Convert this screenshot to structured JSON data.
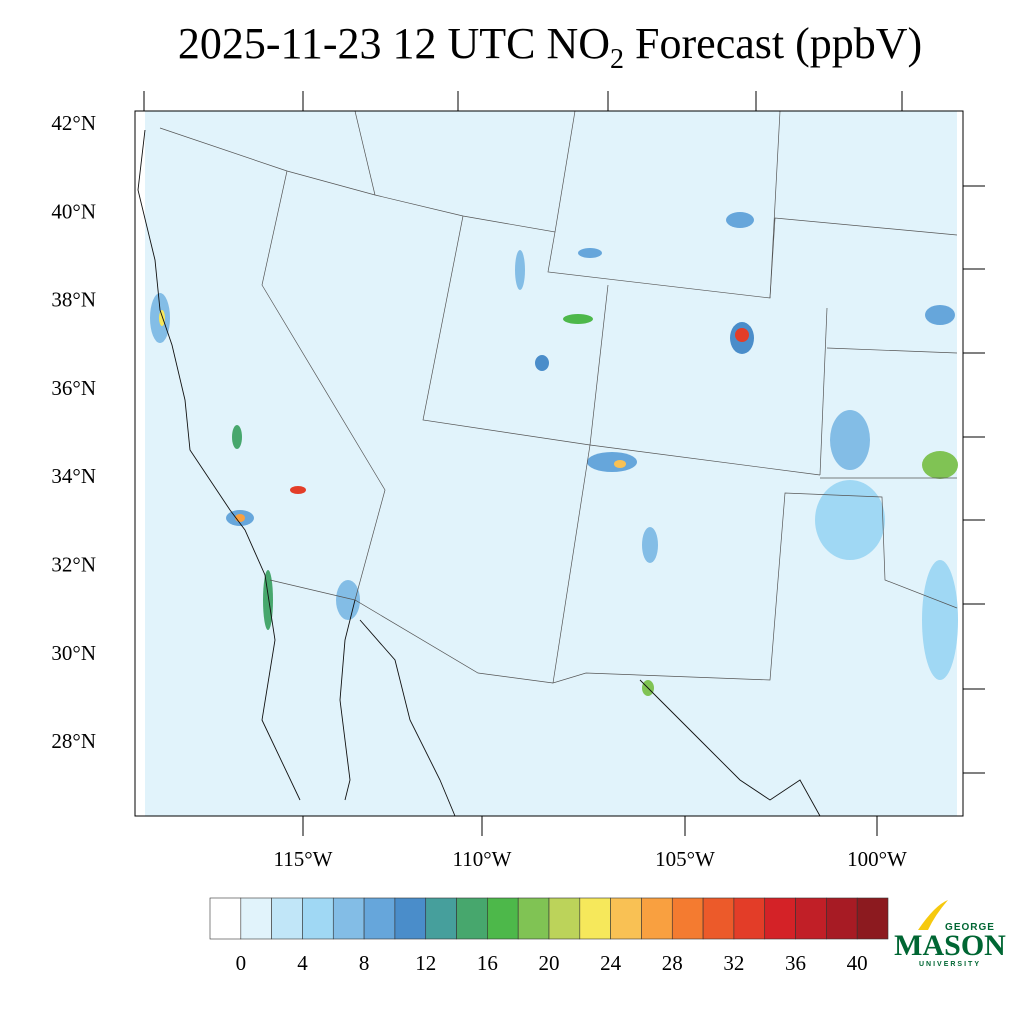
{
  "header": {
    "title": {
      "before": "2025-11-23 12 UTC NO",
      "sub": "2",
      "after": " Forecast (ppbV)"
    }
  },
  "map": {
    "lat_labels": [
      "42°N",
      "40°N",
      "38°N",
      "36°N",
      "34°N",
      "32°N",
      "30°N",
      "28°N"
    ],
    "lon_labels": [
      "115°W",
      "110°W",
      "105°W",
      "100°W"
    ]
  },
  "colorbar": {
    "colors": [
      "#ffffff",
      "#e1f3fb",
      "#c1e6f8",
      "#a0d8f4",
      "#83bde6",
      "#66a6db",
      "#4a8dca",
      "#469f9c",
      "#47a76d",
      "#4db84a",
      "#80c354",
      "#bcd35a",
      "#f6e85b",
      "#f9c154",
      "#f9a040",
      "#f47b30",
      "#ec5a2a",
      "#e33d28",
      "#d42227",
      "#c11f27",
      "#a71b24",
      "#8c1a1f"
    ],
    "ticks": [
      0,
      4,
      8,
      12,
      16,
      20,
      24,
      28,
      32,
      36,
      40
    ]
  },
  "logo": {
    "top": "GEORGE",
    "main": "MASON",
    "bottom": "UNIVERSITY"
  }
}
